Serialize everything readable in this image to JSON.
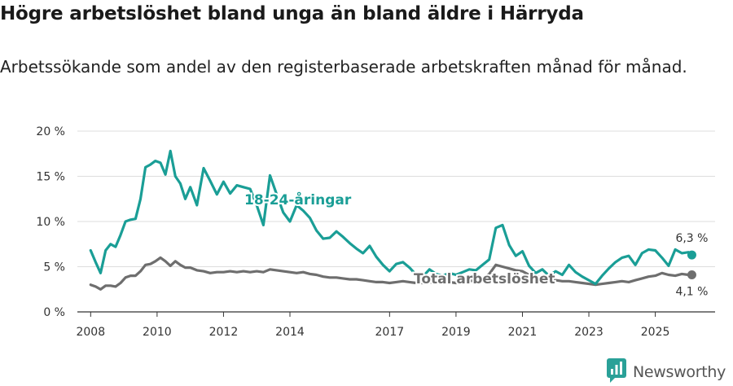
{
  "title": "Högre arbetslöshet bland unga än bland äldre i Härryda",
  "subtitle": "Arbetssökande som andel av den registerbaserade arbetskraften månad för månad.",
  "brand": {
    "name": "Newsworthy",
    "logo_icon": "bar-chart-logo-icon",
    "color": "#2aa198"
  },
  "chart_data": {
    "type": "line",
    "y_ticks": [
      "0 %",
      "5 %",
      "10 %",
      "15 %",
      "20 %"
    ],
    "y_tick_values": [
      0,
      5,
      10,
      15,
      20
    ],
    "ylim": [
      0,
      20
    ],
    "xlim": [
      2007.6,
      2026.8
    ],
    "x_ticks": [
      "2008",
      "2010",
      "2012",
      "2014",
      "2017",
      "2019",
      "2021",
      "2023",
      "2025"
    ],
    "x_tick_values": [
      2008,
      2010,
      2012,
      2014,
      2017,
      2019,
      2021,
      2023,
      2025
    ],
    "grid": true,
    "series": [
      {
        "name": "18-24-åringar",
        "color": "#1a9e96",
        "end_label": "6,3 %",
        "x": [
          2008.0,
          2008.15,
          2008.3,
          2008.45,
          2008.6,
          2008.75,
          2008.9,
          2009.05,
          2009.2,
          2009.35,
          2009.5,
          2009.65,
          2009.8,
          2009.95,
          2010.1,
          2010.25,
          2010.4,
          2010.55,
          2010.7,
          2010.85,
          2011.0,
          2011.2,
          2011.4,
          2011.6,
          2011.8,
          2012.0,
          2012.2,
          2012.4,
          2012.6,
          2012.8,
          2013.0,
          2013.2,
          2013.4,
          2013.6,
          2013.8,
          2014.0,
          2014.2,
          2014.4,
          2014.6,
          2014.8,
          2015.0,
          2015.2,
          2015.4,
          2015.6,
          2015.8,
          2016.0,
          2016.2,
          2016.4,
          2016.6,
          2016.8,
          2017.0,
          2017.2,
          2017.4,
          2017.6,
          2017.8,
          2018.0,
          2018.2,
          2018.4,
          2018.6,
          2018.8,
          2019.0,
          2019.2,
          2019.4,
          2019.6,
          2019.8,
          2020.0,
          2020.2,
          2020.4,
          2020.6,
          2020.8,
          2021.0,
          2021.2,
          2021.4,
          2021.6,
          2021.8,
          2022.0,
          2022.2,
          2022.4,
          2022.6,
          2022.8,
          2023.0,
          2023.2,
          2023.4,
          2023.6,
          2023.8,
          2024.0,
          2024.2,
          2024.4,
          2024.6,
          2024.8,
          2025.0,
          2025.2,
          2025.4,
          2025.6,
          2025.8,
          2026.0,
          2026.1
        ],
        "y": [
          6.8,
          5.5,
          4.3,
          6.8,
          7.5,
          7.2,
          8.5,
          10.0,
          10.2,
          10.3,
          12.5,
          16.0,
          16.3,
          16.7,
          16.5,
          15.2,
          17.8,
          15.0,
          14.2,
          12.5,
          13.8,
          11.8,
          15.9,
          14.5,
          13.0,
          14.4,
          13.1,
          14.0,
          13.8,
          13.6,
          11.8,
          9.6,
          15.1,
          13.0,
          11.0,
          10.0,
          11.8,
          11.2,
          10.4,
          9.0,
          8.1,
          8.2,
          8.9,
          8.3,
          7.6,
          7.0,
          6.5,
          7.3,
          6.1,
          5.2,
          4.5,
          5.3,
          5.5,
          4.9,
          4.1,
          3.9,
          4.7,
          4.2,
          4.0,
          4.3,
          4.1,
          4.4,
          4.7,
          4.6,
          5.2,
          5.8,
          9.3,
          9.6,
          7.4,
          6.2,
          6.7,
          5.1,
          4.3,
          4.7,
          4.0,
          4.5,
          4.1,
          5.2,
          4.4,
          3.9,
          3.5,
          3.1,
          4.0,
          4.8,
          5.5,
          6.0,
          6.2,
          5.2,
          6.5,
          6.9,
          6.8,
          6.0,
          5.1,
          6.9,
          6.5,
          6.6,
          6.3
        ]
      },
      {
        "name": "Total arbetslöshet",
        "color": "#6e6e6e",
        "end_label": "4,1 %",
        "x": [
          2008.0,
          2008.15,
          2008.3,
          2008.45,
          2008.6,
          2008.75,
          2008.9,
          2009.05,
          2009.2,
          2009.35,
          2009.5,
          2009.65,
          2009.8,
          2009.95,
          2010.1,
          2010.25,
          2010.4,
          2010.55,
          2010.7,
          2010.85,
          2011.0,
          2011.2,
          2011.4,
          2011.6,
          2011.8,
          2012.0,
          2012.2,
          2012.4,
          2012.6,
          2012.8,
          2013.0,
          2013.2,
          2013.4,
          2013.6,
          2013.8,
          2014.0,
          2014.2,
          2014.4,
          2014.6,
          2014.8,
          2015.0,
          2015.2,
          2015.4,
          2015.6,
          2015.8,
          2016.0,
          2016.2,
          2016.4,
          2016.6,
          2016.8,
          2017.0,
          2017.2,
          2017.4,
          2017.6,
          2017.8,
          2018.0,
          2018.2,
          2018.4,
          2018.6,
          2018.8,
          2019.0,
          2019.2,
          2019.4,
          2019.6,
          2019.8,
          2020.0,
          2020.2,
          2020.4,
          2020.6,
          2020.8,
          2021.0,
          2021.2,
          2021.4,
          2021.6,
          2021.8,
          2022.0,
          2022.2,
          2022.4,
          2022.6,
          2022.8,
          2023.0,
          2023.2,
          2023.4,
          2023.6,
          2023.8,
          2024.0,
          2024.2,
          2024.4,
          2024.6,
          2024.8,
          2025.0,
          2025.2,
          2025.4,
          2025.6,
          2025.8,
          2026.0,
          2026.1
        ],
        "y": [
          3.0,
          2.8,
          2.5,
          2.9,
          2.9,
          2.8,
          3.2,
          3.8,
          4.0,
          4.0,
          4.5,
          5.2,
          5.3,
          5.6,
          6.0,
          5.6,
          5.1,
          5.6,
          5.2,
          4.9,
          4.9,
          4.6,
          4.5,
          4.3,
          4.4,
          4.4,
          4.5,
          4.4,
          4.5,
          4.4,
          4.5,
          4.4,
          4.7,
          4.6,
          4.5,
          4.4,
          4.3,
          4.4,
          4.2,
          4.1,
          3.9,
          3.8,
          3.8,
          3.7,
          3.6,
          3.6,
          3.5,
          3.4,
          3.3,
          3.3,
          3.2,
          3.3,
          3.4,
          3.3,
          3.2,
          3.2,
          3.3,
          3.2,
          3.2,
          3.3,
          3.2,
          3.3,
          3.4,
          3.5,
          3.7,
          4.2,
          5.2,
          5.0,
          4.8,
          4.6,
          4.5,
          4.1,
          3.9,
          3.8,
          3.6,
          3.5,
          3.4,
          3.4,
          3.3,
          3.2,
          3.1,
          3.0,
          3.1,
          3.2,
          3.3,
          3.4,
          3.3,
          3.5,
          3.7,
          3.9,
          4.0,
          4.3,
          4.1,
          4.0,
          4.2,
          4.1,
          4.1
        ]
      }
    ]
  }
}
